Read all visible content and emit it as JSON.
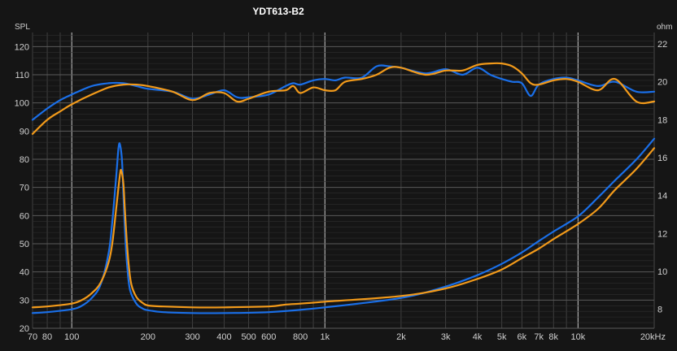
{
  "chart_data": {
    "type": "line",
    "title": "YDT613-B2",
    "ylabel": "SPL",
    "y2label": "ohm",
    "x_scale": "log",
    "xlim": [
      70,
      20000
    ],
    "ylim": [
      20,
      125
    ],
    "y2lim": [
      7,
      22.6
    ],
    "grid": true,
    "x_ticks": [
      {
        "v": 70,
        "label": "70"
      },
      {
        "v": 80,
        "label": "80"
      },
      {
        "v": 100,
        "label": "100"
      },
      {
        "v": 200,
        "label": "200"
      },
      {
        "v": 300,
        "label": "300"
      },
      {
        "v": 400,
        "label": "400"
      },
      {
        "v": 500,
        "label": "500"
      },
      {
        "v": 600,
        "label": "600"
      },
      {
        "v": 800,
        "label": "800"
      },
      {
        "v": 1000,
        "label": "1k"
      },
      {
        "v": 2000,
        "label": "2k"
      },
      {
        "v": 3000,
        "label": "3k"
      },
      {
        "v": 4000,
        "label": "4k"
      },
      {
        "v": 5000,
        "label": "5k"
      },
      {
        "v": 6000,
        "label": "6k"
      },
      {
        "v": 7000,
        "label": "7k"
      },
      {
        "v": 8000,
        "label": "8k"
      },
      {
        "v": 10000,
        "label": "10k"
      },
      {
        "v": 20000,
        "label": "20kHz"
      }
    ],
    "y_ticks": [
      20,
      30,
      40,
      50,
      60,
      70,
      80,
      90,
      100,
      110,
      120
    ],
    "y2_ticks": [
      8,
      10,
      12,
      14,
      16,
      18,
      20,
      22
    ],
    "series": [
      {
        "axis": "left",
        "color": "#1a6fe8",
        "x": [
          70,
          80,
          90,
          100,
          120,
          140,
          160,
          180,
          200,
          250,
          300,
          350,
          400,
          450,
          500,
          600,
          700,
          750,
          800,
          900,
          1000,
          1100,
          1200,
          1400,
          1600,
          1800,
          2000,
          2500,
          3000,
          3500,
          4000,
          4500,
          5000,
          5500,
          6000,
          6500,
          7000,
          8000,
          9000,
          10000,
          12000,
          14000,
          17000,
          20000
        ],
        "y": [
          94,
          98,
          101,
          103,
          106,
          107,
          107,
          106,
          105,
          104,
          101.5,
          103,
          104.5,
          102,
          102,
          103,
          106,
          107,
          106.5,
          108,
          108.5,
          108,
          109,
          109,
          113,
          113,
          112.5,
          110.5,
          112,
          110,
          112.5,
          110,
          108.5,
          107.5,
          107,
          102.5,
          106.5,
          108.5,
          109,
          108,
          106,
          107.5,
          104,
          104
        ]
      },
      {
        "axis": "left",
        "color": "#f29a1a",
        "x": [
          70,
          80,
          90,
          100,
          120,
          140,
          160,
          180,
          200,
          250,
          300,
          350,
          400,
          450,
          500,
          600,
          700,
          750,
          800,
          900,
          1000,
          1100,
          1200,
          1400,
          1600,
          1800,
          2000,
          2500,
          3000,
          3500,
          4000,
          4500,
          5000,
          5500,
          6000,
          6500,
          7000,
          8000,
          9000,
          10000,
          12000,
          14000,
          17000,
          20000
        ],
        "y": [
          89,
          94,
          97,
          99.5,
          103,
          105.5,
          106.5,
          106.5,
          106,
          104,
          101,
          103.5,
          103.5,
          100.5,
          101.5,
          104,
          104.5,
          106,
          103.5,
          105.5,
          104.5,
          104.5,
          107.5,
          108.5,
          110,
          112.5,
          112.5,
          110,
          111.5,
          111.5,
          113.5,
          114,
          114,
          113,
          110.5,
          107,
          106.5,
          108,
          108.5,
          107.5,
          104.5,
          108.5,
          100.5,
          100.5
        ]
      },
      {
        "axis": "right",
        "color": "#1a6fe8",
        "x": [
          70,
          80,
          100,
          110,
          120,
          130,
          140,
          145,
          150,
          153,
          155,
          158,
          160,
          163,
          166,
          170,
          180,
          190,
          200,
          230,
          300,
          400,
          600,
          1000,
          2000,
          3000,
          4000,
          5000,
          6000,
          7000,
          8000,
          10000,
          12000,
          14000,
          17000,
          20000
        ],
        "y": [
          7.8,
          7.85,
          8.0,
          8.2,
          8.6,
          9.3,
          11.0,
          12.8,
          15.1,
          16.5,
          16.7,
          15.8,
          14.0,
          11.6,
          10.1,
          9.0,
          8.3,
          8.05,
          7.95,
          7.85,
          7.8,
          7.8,
          7.85,
          8.1,
          8.6,
          9.2,
          9.8,
          10.4,
          11.0,
          11.6,
          12.1,
          12.9,
          13.9,
          14.8,
          15.9,
          17.0
        ]
      },
      {
        "axis": "right",
        "color": "#f29a1a",
        "x": [
          70,
          80,
          100,
          110,
          120,
          130,
          140,
          145,
          150,
          155,
          157,
          160,
          162,
          165,
          168,
          172,
          180,
          190,
          200,
          230,
          300,
          400,
          600,
          700,
          800,
          900,
          1000,
          2000,
          3000,
          4000,
          5000,
          6000,
          7000,
          8000,
          10000,
          12000,
          14000,
          17000,
          20000
        ],
        "y": [
          8.1,
          8.15,
          8.3,
          8.5,
          8.85,
          9.4,
          10.5,
          11.6,
          13.4,
          15.1,
          15.3,
          14.6,
          13.3,
          11.6,
          10.3,
          9.3,
          8.65,
          8.35,
          8.2,
          8.15,
          8.1,
          8.1,
          8.15,
          8.25,
          8.3,
          8.35,
          8.4,
          8.7,
          9.1,
          9.6,
          10.1,
          10.7,
          11.2,
          11.7,
          12.5,
          13.3,
          14.3,
          15.4,
          16.5
        ]
      }
    ]
  }
}
